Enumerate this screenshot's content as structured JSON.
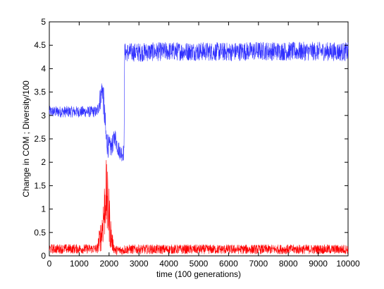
{
  "chart_data": {
    "type": "line",
    "title": "",
    "xlabel": "time (100 generations)",
    "ylabel": "Change in COM ; Diversity/100",
    "xlim": [
      0,
      10000
    ],
    "ylim": [
      0,
      5
    ],
    "grid": false,
    "legend": "none",
    "x_ticks": [
      0,
      1000,
      2000,
      3000,
      4000,
      5000,
      6000,
      7000,
      8000,
      9000,
      10000
    ],
    "x_tick_labels": [
      "0",
      "1000",
      "2000",
      "3000",
      "4000",
      "5000",
      "6000",
      "7000",
      "8000",
      "9000",
      "10000"
    ],
    "y_ticks": [
      0,
      0.5,
      1,
      1.5,
      2,
      2.5,
      3,
      3.5,
      4,
      4.5,
      5
    ],
    "y_tick_labels": [
      "0",
      "0.5",
      "1",
      "1.5",
      "2",
      "2.5",
      "3",
      "3.5",
      "4",
      "4.5",
      "5"
    ],
    "series": [
      {
        "color": "#3030ff",
        "x": [
          0,
          1000,
          1600,
          1700,
          1780,
          1850,
          1900,
          2000,
          2100,
          2200,
          2300,
          2400,
          2500,
          2520,
          3000,
          4000,
          5000,
          6000,
          7000,
          8000,
          9000,
          10000
        ],
        "y": [
          3.08,
          3.08,
          3.08,
          3.35,
          3.6,
          3.0,
          2.5,
          2.3,
          2.35,
          2.55,
          2.3,
          2.2,
          2.2,
          4.35,
          4.35,
          4.37,
          4.37,
          4.36,
          4.38,
          4.37,
          4.37,
          4.36
        ],
        "noise": [
          0.12,
          0.12,
          0.12,
          0.25,
          0.3,
          0.35,
          0.3,
          0.25,
          0.2,
          0.2,
          0.18,
          0.18,
          0.18,
          0.2,
          0.2,
          0.2,
          0.2,
          0.2,
          0.2,
          0.2,
          0.2,
          0.2
        ]
      },
      {
        "color": "#ff0000",
        "x": [
          0,
          1000,
          1600,
          1750,
          1850,
          1900,
          1950,
          2000,
          2050,
          2100,
          2200,
          2400,
          2500,
          2520,
          3000,
          4000,
          5000,
          6000,
          7000,
          8000,
          9000,
          10000
        ],
        "y": [
          0.15,
          0.15,
          0.15,
          0.5,
          1.0,
          1.4,
          1.0,
          0.9,
          0.5,
          0.3,
          0.12,
          0.12,
          0.12,
          0.14,
          0.14,
          0.14,
          0.14,
          0.14,
          0.14,
          0.14,
          0.14,
          0.14
        ],
        "noise": [
          0.1,
          0.1,
          0.1,
          0.4,
          0.7,
          0.7,
          0.8,
          0.6,
          0.4,
          0.2,
          0.1,
          0.1,
          0.1,
          0.1,
          0.1,
          0.1,
          0.1,
          0.1,
          0.1,
          0.1,
          0.1,
          0.1
        ]
      }
    ]
  }
}
